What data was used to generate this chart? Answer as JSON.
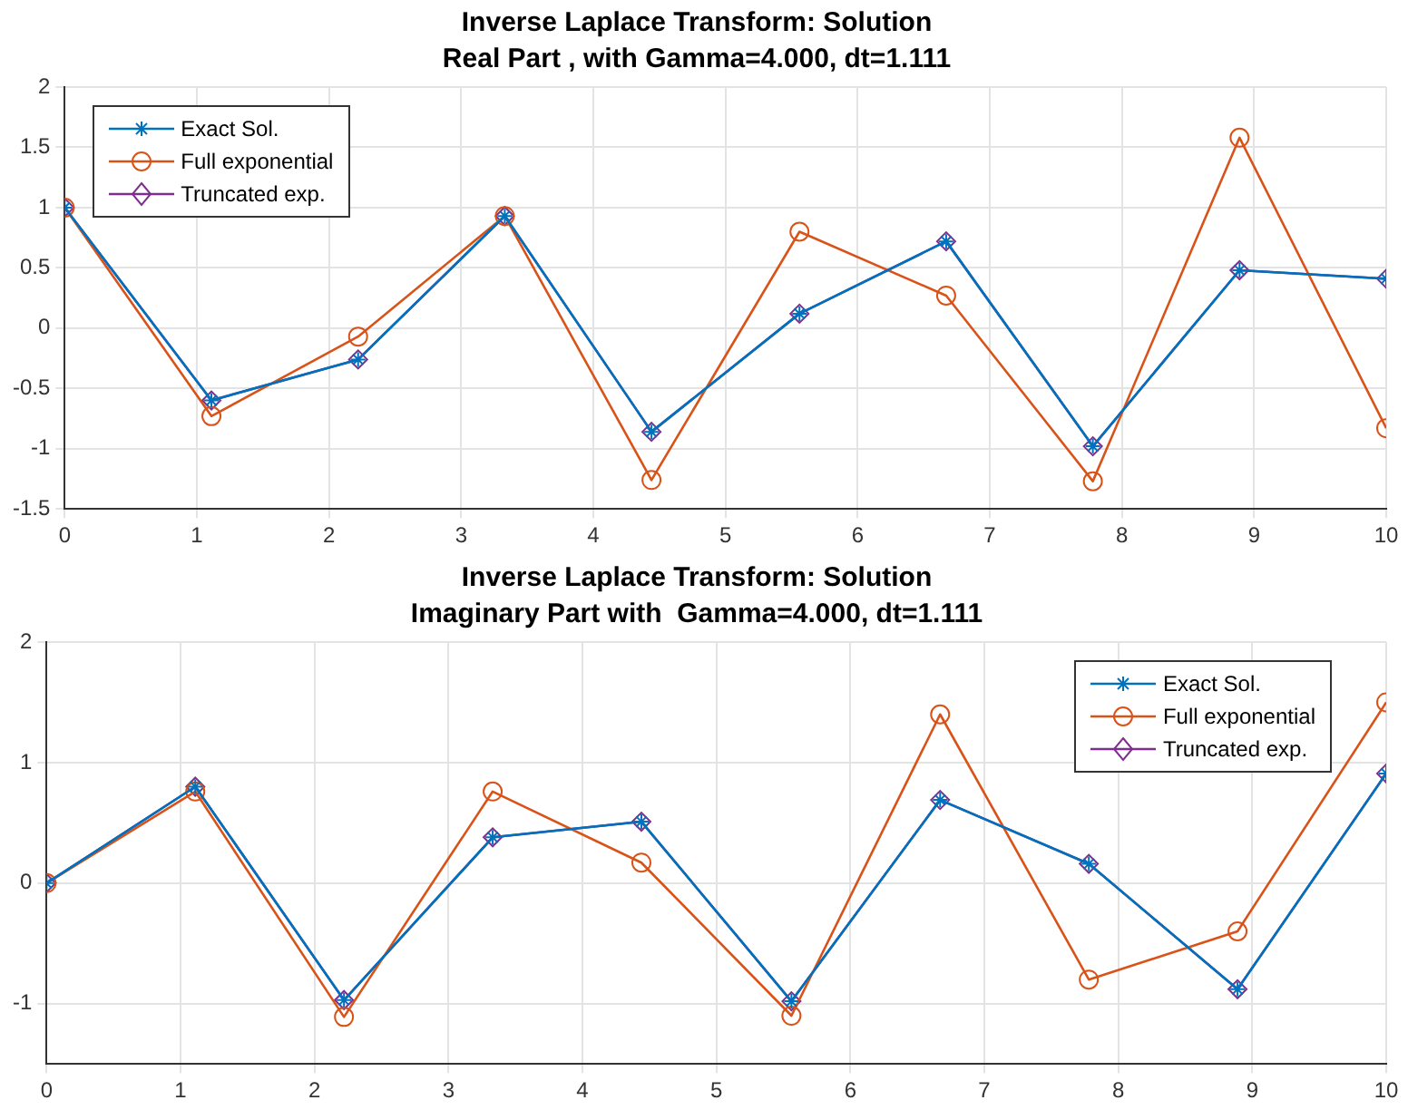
{
  "chart_data": [
    {
      "type": "line",
      "title": "Inverse Laplace Transform: Solution",
      "subtitle": "Real Part , with Gamma=4.000, dt=1.111",
      "x": [
        0,
        1.11,
        2.22,
        3.33,
        4.44,
        5.56,
        6.67,
        7.78,
        8.89,
        10
      ],
      "series": [
        {
          "name": "Exact Sol.",
          "color": "#0072bd",
          "marker": "cross",
          "values": [
            1,
            -0.6,
            -0.26,
            0.93,
            -0.86,
            0.12,
            0.72,
            -0.98,
            0.48,
            0.41
          ]
        },
        {
          "name": "Full exponential",
          "color": "#d95319",
          "marker": "circle",
          "values": [
            1,
            -0.73,
            -0.07,
            0.93,
            -1.26,
            0.8,
            0.27,
            -1.27,
            1.58,
            -0.83
          ]
        },
        {
          "name": "Truncated exp.",
          "color": "#7e2f8e",
          "marker": "diamond",
          "values": [
            1,
            -0.6,
            -0.26,
            0.93,
            -0.86,
            0.12,
            0.72,
            -0.98,
            0.48,
            0.41
          ]
        }
      ],
      "xlim": [
        0,
        10
      ],
      "xticks": [
        0,
        1,
        2,
        3,
        4,
        5,
        6,
        7,
        8,
        9,
        10
      ],
      "ylim": [
        -1.5,
        2
      ],
      "yticks": [
        -1.5,
        -1,
        -0.5,
        0,
        0.5,
        1,
        1.5,
        2
      ],
      "grid": true,
      "legend": "top left"
    },
    {
      "type": "line",
      "title": "Inverse Laplace Transform: Solution",
      "subtitle": "Imaginary Part with  Gamma=4.000, dt=1.111",
      "x": [
        0,
        1.11,
        2.22,
        3.33,
        4.44,
        5.56,
        6.67,
        7.78,
        8.89,
        10
      ],
      "series": [
        {
          "name": "Exact Sol.",
          "color": "#0072bd",
          "marker": "cross",
          "values": [
            0,
            0.8,
            -0.97,
            0.38,
            0.51,
            -0.98,
            0.69,
            0.16,
            -0.88,
            0.91
          ]
        },
        {
          "name": "Full exponential",
          "color": "#d95319",
          "marker": "circle",
          "values": [
            0,
            0.76,
            -1.11,
            0.76,
            0.17,
            -1.1,
            1.4,
            -0.8,
            -0.4,
            1.5
          ]
        },
        {
          "name": "Truncated exp.",
          "color": "#7e2f8e",
          "marker": "diamond",
          "values": [
            0,
            0.8,
            -0.97,
            0.38,
            0.51,
            -0.98,
            0.69,
            0.16,
            -0.88,
            0.91
          ]
        }
      ],
      "xlim": [
        0,
        10
      ],
      "xticks": [
        0,
        1,
        2,
        3,
        4,
        5,
        6,
        7,
        8,
        9,
        10
      ],
      "ylim": [
        -1.5,
        2
      ],
      "yticks": [
        -1,
        0,
        1,
        2
      ],
      "grid": true,
      "legend": "top right"
    }
  ]
}
